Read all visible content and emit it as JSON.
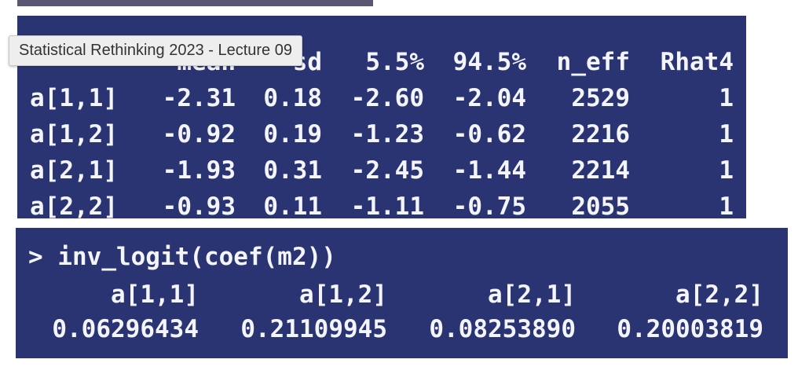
{
  "tooltip": "Statistical Rethinking 2023 - Lecture 09",
  "precis": {
    "header": [
      "mean",
      "sd",
      "5.5%",
      "94.5%",
      "n_eff",
      "Rhat4"
    ],
    "rows": [
      {
        "name": "a[1,1]",
        "mean": "-2.31",
        "sd": "0.18",
        "lo": "-2.60",
        "hi": "-2.04",
        "n_eff": "2529",
        "rhat": "1"
      },
      {
        "name": "a[1,2]",
        "mean": "-0.92",
        "sd": "0.19",
        "lo": "-1.23",
        "hi": "-0.62",
        "n_eff": "2216",
        "rhat": "1"
      },
      {
        "name": "a[2,1]",
        "mean": "-1.93",
        "sd": "0.31",
        "lo": "-2.45",
        "hi": "-1.44",
        "n_eff": "2214",
        "rhat": "1"
      },
      {
        "name": "a[2,2]",
        "mean": "-0.93",
        "sd": "0.11",
        "lo": "-1.11",
        "hi": "-0.75",
        "n_eff": "2055",
        "rhat": "1"
      }
    ]
  },
  "invlogit": {
    "command": "> inv_logit(coef(m2))",
    "names": [
      "a[1,1]",
      "a[1,2]",
      "a[2,1]",
      "a[2,2]"
    ],
    "values": [
      "0.06296434",
      "0.21109945",
      "0.08253890",
      "0.20003819"
    ]
  },
  "colors": {
    "console_bg": "#2b3473",
    "console_text": "#f4f5fb",
    "tooltip_bg": "#eeeeee"
  }
}
